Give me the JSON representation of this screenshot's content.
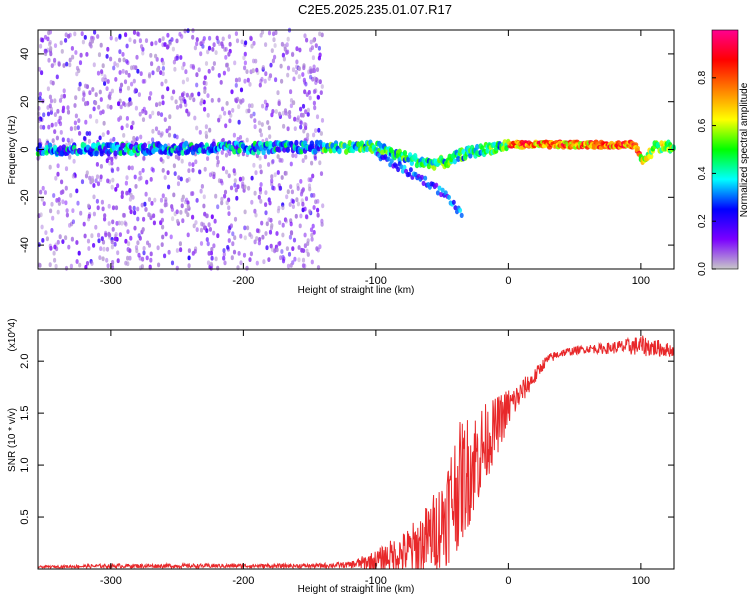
{
  "title": "C2E5.2025.235.01.07.R17",
  "colors": {
    "snr_line": "#e8282a",
    "cbar_stops": [
      "#c8c8c8",
      "#7a00ff",
      "#0000ff",
      "#00ffff",
      "#00ff00",
      "#ffff00",
      "#ff8000",
      "#ff0000",
      "#ff0090"
    ]
  },
  "chart_data": [
    {
      "type": "heatmap",
      "title": "C2E5.2025.235.01.07.R17",
      "xlabel": "Height of straight line (km)",
      "ylabel": "Frequency (Hz)",
      "xlim": [
        -355,
        125
      ],
      "ylim": [
        -50,
        50
      ],
      "xticks": [
        -300,
        -200,
        -100,
        0,
        100
      ],
      "xtick_labels": [
        "-300",
        "-200",
        "-100",
        "0",
        "100"
      ],
      "yticks": [
        -40,
        -20,
        0,
        20,
        40
      ],
      "ytick_labels": [
        "-40",
        "-20",
        "0",
        "20",
        "40"
      ],
      "colorbar": {
        "label": "Normalized spectral amplitude",
        "range": [
          0,
          1
        ],
        "ticks": [
          0.0,
          0.2,
          0.4,
          0.6,
          0.8
        ],
        "tick_labels": [
          "0.0",
          "0.2",
          "0.4",
          "0.6",
          "0.8"
        ],
        "colormap": "rainbow (violet to magenta)"
      },
      "features": {
        "noise_band_x": [
          -355,
          -140
        ],
        "carrier_line": [
          [
            -355,
            0
          ],
          [
            -130,
            1
          ],
          [
            -100,
            1
          ],
          [
            -80,
            -3
          ],
          [
            -60,
            -6
          ],
          [
            -45,
            -5
          ],
          [
            -35,
            -2
          ],
          [
            -10,
            1
          ],
          [
            0,
            2
          ],
          [
            50,
            2
          ],
          [
            95,
            2
          ],
          [
            100,
            -3
          ],
          [
            104,
            -4
          ],
          [
            110,
            1
          ],
          [
            125,
            1
          ]
        ],
        "secondary_branch": [
          [
            -100,
            -2
          ],
          [
            -80,
            -8
          ],
          [
            -60,
            -14
          ],
          [
            -45,
            -20
          ],
          [
            -35,
            -28
          ]
        ],
        "strong_segment_x": [
          0,
          100
        ]
      },
      "grid": false
    },
    {
      "type": "line",
      "xlabel": "Height of straight line (km)",
      "ylabel": "SNR (10 * v/v)",
      "y_multiplier": "(x10^4)",
      "xlim": [
        -355,
        125
      ],
      "ylim": [
        0,
        2.3
      ],
      "xticks": [
        -300,
        -200,
        -100,
        0,
        100
      ],
      "xtick_labels": [
        "-300",
        "-200",
        "-100",
        "0",
        "100"
      ],
      "yticks": [
        0.5,
        1.0,
        1.5,
        2.0
      ],
      "ytick_labels": [
        "0.5",
        "1.0",
        "1.5",
        "2.0"
      ],
      "series": [
        {
          "values_x": [
            -355,
            -300,
            -250,
            -200,
            -150,
            -120,
            -100,
            -90,
            -80,
            -70,
            -60,
            -50,
            -45,
            -40,
            -35,
            -30,
            -25,
            -20,
            -15,
            -10,
            -5,
            0,
            5,
            10,
            15,
            20,
            25,
            30,
            40,
            50,
            60,
            70,
            80,
            90,
            100,
            110,
            125
          ],
          "values_y": [
            0.02,
            0.03,
            0.03,
            0.03,
            0.03,
            0.04,
            0.08,
            0.12,
            0.15,
            0.2,
            0.3,
            0.45,
            0.6,
            0.75,
            0.85,
            0.95,
            1.05,
            1.15,
            1.25,
            1.35,
            1.45,
            1.55,
            1.62,
            1.7,
            1.78,
            1.85,
            1.95,
            2.02,
            2.08,
            2.1,
            2.12,
            2.12,
            2.13,
            2.14,
            2.15,
            2.13,
            2.1
          ],
          "noise_amplitude": [
            0.01,
            0.02,
            0.02,
            0.02,
            0.02,
            0.03,
            0.1,
            0.15,
            0.2,
            0.28,
            0.35,
            0.45,
            0.55,
            0.6,
            0.6,
            0.55,
            0.5,
            0.45,
            0.35,
            0.3,
            0.25,
            0.2,
            0.15,
            0.12,
            0.1,
            0.08,
            0.06,
            0.05,
            0.04,
            0.04,
            0.04,
            0.05,
            0.06,
            0.08,
            0.1,
            0.09,
            0.06
          ]
        }
      ],
      "grid": false
    }
  ]
}
